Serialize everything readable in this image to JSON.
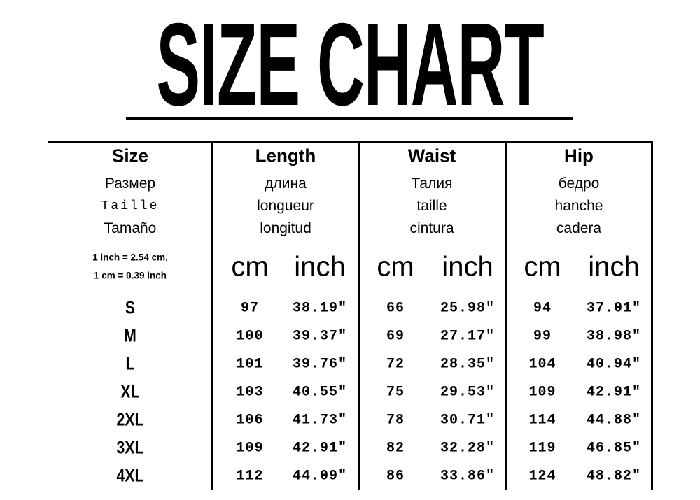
{
  "title": "SIZE CHART",
  "header": {
    "columns": [
      {
        "title": "Size",
        "lines": [
          "Размер",
          "Taille",
          "Tamaño"
        ]
      },
      {
        "title": "Length",
        "lines": [
          "длина",
          "longueur",
          "longitud"
        ]
      },
      {
        "title": "Waist",
        "lines": [
          "Талия",
          "taille",
          "cintura"
        ]
      },
      {
        "title": "Hip",
        "lines": [
          "бедро",
          "hanche",
          "cadera"
        ]
      }
    ],
    "conversion": [
      "1 inch = 2.54 cm,",
      "1 cm = 0.39 inch"
    ],
    "units": [
      "cm",
      "inch"
    ]
  },
  "rows": [
    {
      "size": "S",
      "values": [
        "97",
        "38.19\"",
        "66",
        "25.98\"",
        "94",
        "37.01\""
      ]
    },
    {
      "size": "M",
      "values": [
        "100",
        "39.37\"",
        "69",
        "27.17\"",
        "99",
        "38.98\""
      ]
    },
    {
      "size": "L",
      "values": [
        "101",
        "39.76\"",
        "72",
        "28.35\"",
        "104",
        "40.94\""
      ]
    },
    {
      "size": "XL",
      "values": [
        "103",
        "40.55\"",
        "75",
        "29.53\"",
        "109",
        "42.91\""
      ]
    },
    {
      "size": "2XL",
      "values": [
        "106",
        "41.73\"",
        "78",
        "30.71\"",
        "114",
        "44.88\""
      ]
    },
    {
      "size": "3XL",
      "values": [
        "109",
        "42.91\"",
        "82",
        "32.28\"",
        "119",
        "46.85\""
      ]
    },
    {
      "size": "4XL",
      "values": [
        "112",
        "44.09\"",
        "86",
        "33.86\"",
        "124",
        "48.82\""
      ]
    }
  ]
}
